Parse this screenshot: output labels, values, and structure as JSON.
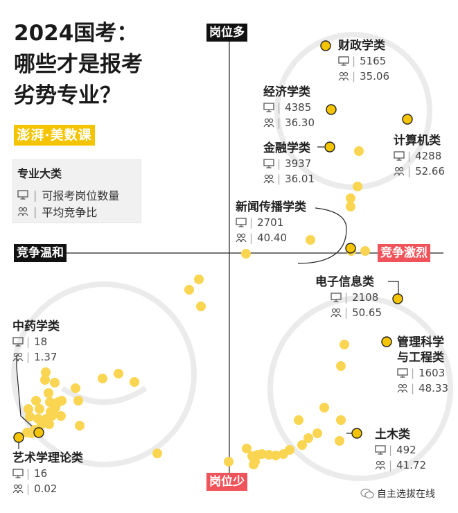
{
  "title": {
    "line1": "2024国考：",
    "line2": "哪些才是报考",
    "line3": "劣势专业？"
  },
  "brand": "澎湃·美数课",
  "legend": {
    "title": "专业大类",
    "item1": "可报考岗位数量",
    "item2": "平均竞争比"
  },
  "axes": {
    "top": "岗位多",
    "bottom": "岗位少",
    "left": "竞争温和",
    "right": "竞争激烈"
  },
  "labels": [
    {
      "name": "财政学类",
      "positions": "5165",
      "ratio": "35.06"
    },
    {
      "name": "经济学类",
      "positions": "4385",
      "ratio": "36.30"
    },
    {
      "name": "计算机类",
      "positions": "4288",
      "ratio": "52.66"
    },
    {
      "name": "金融学类",
      "positions": "3937",
      "ratio": "36.01"
    },
    {
      "name": "新闻传播学类",
      "positions": "2701",
      "ratio": "40.40"
    },
    {
      "name": "电子信息类",
      "positions": "2108",
      "ratio": "50.65"
    },
    {
      "name": "管理科学与工程类",
      "name_line1": "管理科学",
      "name_line2": "与工程类",
      "positions": "1603",
      "ratio": "48.33"
    },
    {
      "name": "中药学类",
      "positions": "18",
      "ratio": "1.37"
    },
    {
      "name": "土木类",
      "positions": "492",
      "ratio": "41.72"
    },
    {
      "name": "艺术学理论类",
      "positions": "16",
      "ratio": "0.02"
    }
  ],
  "credit": "自主选拔在线",
  "colors": {
    "dot": "#f9d552",
    "highlight": "#f5c400",
    "axis": "#222222",
    "red": "#f0545a",
    "watermark": "#ebebeb"
  },
  "chart_data": {
    "type": "scatter",
    "title": "2024国考：哪些才是报考劣势专业？",
    "xlabel": "平均竞争比",
    "ylabel": "可报考岗位数量",
    "x_direction": "左：竞争温和 → 右：竞争激烈",
    "y_direction": "上：岗位多 → 下：岗位少",
    "highlighted": [
      {
        "name": "财政学类",
        "positions": 5165,
        "ratio": 35.06
      },
      {
        "name": "经济学类",
        "positions": 4385,
        "ratio": 36.3
      },
      {
        "name": "计算机类",
        "positions": 4288,
        "ratio": 52.66
      },
      {
        "name": "金融学类",
        "positions": 3937,
        "ratio": 36.01
      },
      {
        "name": "新闻传播学类",
        "positions": 2701,
        "ratio": 40.4
      },
      {
        "name": "电子信息类",
        "positions": 2108,
        "ratio": 50.65
      },
      {
        "name": "管理科学与工程类",
        "positions": 1603,
        "ratio": 48.33
      },
      {
        "name": "土木类",
        "positions": 492,
        "ratio": 41.72
      },
      {
        "name": "中药学类",
        "positions": 18,
        "ratio": 1.37
      },
      {
        "name": "艺术学理论类",
        "positions": 16,
        "ratio": 0.02
      }
    ],
    "other_points_count": 77
  }
}
